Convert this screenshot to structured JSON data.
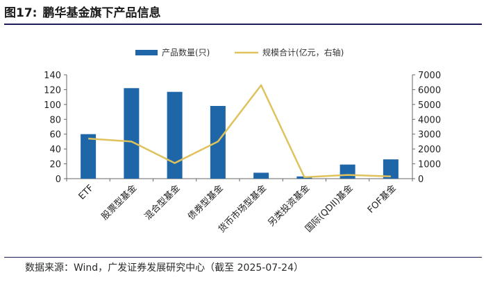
{
  "header": {
    "figure_number": "图17:",
    "title": "鹏华基金旗下产品信息"
  },
  "source": "数据来源：Wind，广发证券发展研究中心（截至 2025-07-24）",
  "colors": {
    "bar": "#1f66a8",
    "line": "#e0c25d",
    "rule": "#1b1b5a"
  },
  "chart_data": {
    "type": "bar",
    "categories": [
      "ETF",
      "股票型基金",
      "混合型基金",
      "债券型基金",
      "货币市场型基金",
      "另类投资基金",
      "国际(QDII)基金",
      "FOF基金"
    ],
    "series": [
      {
        "name": "产品数量(只)",
        "type": "bar",
        "axis": "left",
        "values": [
          60,
          122,
          117,
          98,
          8,
          3,
          19,
          26
        ]
      },
      {
        "name": "规模合计(亿元，右轴)",
        "type": "line",
        "axis": "right",
        "values": [
          2700,
          2500,
          1050,
          2500,
          6300,
          100,
          250,
          150
        ]
      }
    ],
    "yticks_left": [
      "0",
      "20",
      "40",
      "60",
      "80",
      "100",
      "120",
      "140"
    ],
    "yticks_right": [
      "0",
      "1000",
      "2000",
      "3000",
      "4000",
      "5000",
      "6000",
      "7000"
    ],
    "ylim_left": [
      0,
      140
    ],
    "ylim_right": [
      0,
      7000
    ],
    "grid": false,
    "legend_position": "top-center"
  }
}
